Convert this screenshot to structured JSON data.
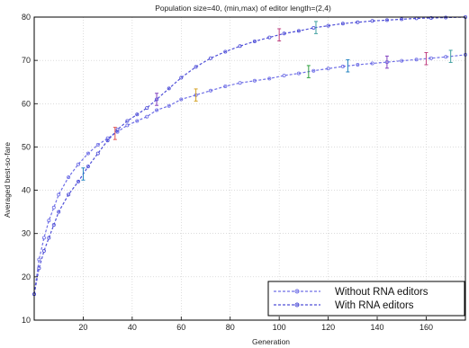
{
  "chart_data": {
    "type": "line",
    "title": "Population size=40, (min,max) of editor length=(2,4)",
    "xlabel": "Generation",
    "ylabel": "Averaged best-so-fare",
    "xlim": [
      0,
      176
    ],
    "ylim": [
      10,
      80
    ],
    "xticks": [
      20,
      40,
      60,
      80,
      100,
      120,
      140,
      160
    ],
    "yticks": [
      10,
      20,
      30,
      40,
      50,
      60,
      70,
      80
    ],
    "grid": true,
    "legend_position": "bottom-right",
    "series": [
      {
        "name": "Without RNA editors",
        "color": "#6f6fe6",
        "x": [
          0,
          2,
          4,
          6,
          8,
          10,
          14,
          18,
          22,
          26,
          30,
          34,
          38,
          42,
          46,
          50,
          55,
          60,
          66,
          72,
          78,
          84,
          90,
          96,
          102,
          108,
          114,
          120,
          126,
          132,
          138,
          144,
          150,
          156,
          162,
          168,
          176
        ],
        "y": [
          16,
          24,
          29,
          33,
          36,
          39,
          43,
          46,
          48.5,
          50.5,
          52,
          53.5,
          55,
          56,
          57,
          58.5,
          59.5,
          61,
          62,
          63,
          64,
          64.8,
          65.3,
          65.8,
          66.5,
          67,
          67.6,
          68.1,
          68.6,
          69,
          69.3,
          69.6,
          69.9,
          70.2,
          70.5,
          70.8,
          71.3
        ],
        "error_bars_at": [
          33,
          66,
          112,
          128,
          144,
          160,
          170
        ]
      },
      {
        "name": "With RNA editors",
        "color": "#4f4fd8",
        "x": [
          0,
          2,
          4,
          6,
          8,
          10,
          14,
          18,
          22,
          26,
          30,
          34,
          38,
          42,
          46,
          50,
          55,
          60,
          66,
          72,
          78,
          84,
          90,
          96,
          102,
          108,
          114,
          120,
          126,
          132,
          138,
          144,
          150,
          156,
          162,
          168,
          176
        ],
        "y": [
          16,
          22,
          26,
          29,
          32,
          35,
          39,
          42,
          45.5,
          48.5,
          51.5,
          54,
          56,
          57.5,
          59,
          61,
          63.5,
          66,
          68.5,
          70.5,
          72,
          73.3,
          74.4,
          75.3,
          76.2,
          76.8,
          77.5,
          78,
          78.5,
          78.8,
          79.1,
          79.3,
          79.5,
          79.7,
          79.8,
          79.9,
          80
        ],
        "error_bars_at": [
          20,
          50,
          100,
          115
        ]
      }
    ]
  }
}
